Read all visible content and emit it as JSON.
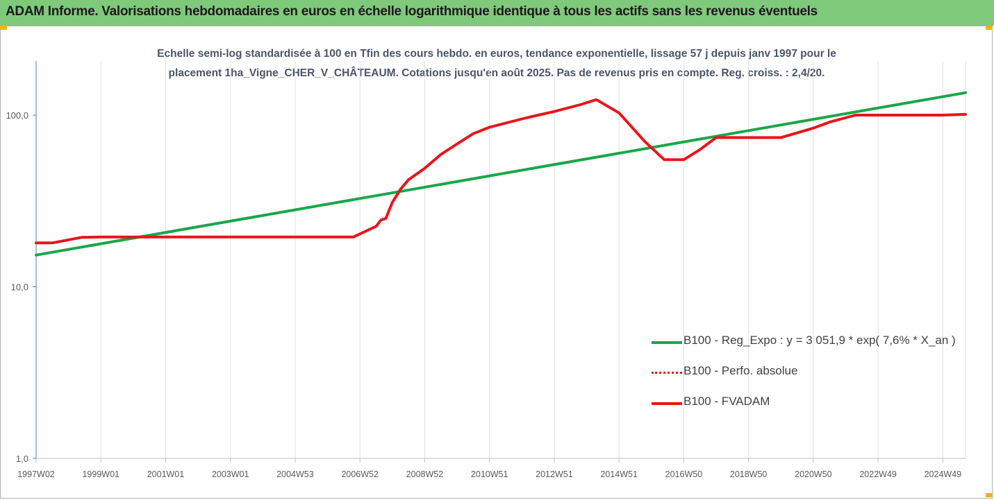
{
  "header": {
    "title": "ADAM Informe. Valorisations hebdomadaires en euros en échelle logarithmique identique à tous les actifs sans les revenus éventuels"
  },
  "subtitle": {
    "line1": "Echelle semi-log standardisée à 100 en Tfin des cours hebdo. en euros, tendance exponentielle, lissage 57 j depuis janv 1997 pour le",
    "line2": "placement 1ha_Vigne_CHER_V_CHÂTEAUM. Cotations jusqu'en août 2025. Pas de revenus pris en compte. Reg. croiss. : 2,4/20."
  },
  "colors": {
    "header_bg": "#7fc97a",
    "regression": "#1aa64a",
    "fvadam": "#e8151b",
    "perfo": "#e8151b",
    "grid": "#e0e0e0",
    "corner": "#f2b400"
  },
  "chart_data": {
    "type": "line",
    "title": "Echelle semi-log standardisée à 100 en Tfin des cours hebdo. en euros, tendance exponentielle, lissage 57 j depuis janv 1997 pour le placement 1ha_Vigne_CHER_V_CHÂTEAUM. Cotations jusqu'en août 2025. Pas de revenus pris en compte. Reg. croiss. : 2,4/20.",
    "y_scale": "log",
    "ylim": [
      1,
      200
    ],
    "y_ticks": [
      "1,0",
      "10,0",
      "100,0"
    ],
    "y_tick_values": [
      1,
      10,
      100
    ],
    "xlim": [
      1997.0,
      2025.7
    ],
    "x_ticks": [
      "1997W02",
      "1999W01",
      "2001W01",
      "2003W01",
      "2004W53",
      "2006W52",
      "2008W52",
      "2010W51",
      "2012W51",
      "2014W51",
      "2016W50",
      "2018W50",
      "2020W50",
      "2022W49",
      "2024W49"
    ],
    "x_tick_values": [
      1997.0,
      1999.0,
      2001.0,
      2003.0,
      2005.0,
      2007.0,
      2009.0,
      2011.0,
      2013.0,
      2015.0,
      2017.0,
      2019.0,
      2021.0,
      2023.0,
      2025.0
    ],
    "grid": "vertical",
    "legend_position": "right",
    "series": [
      {
        "name": "B100 - Reg_Expo : y = 3 051,9 * exp( 7,6% *  X_an )",
        "style": "solid",
        "color": "#1aa64a",
        "x": [
          1997.0,
          2025.7
        ],
        "y": [
          15.3,
          135
        ]
      },
      {
        "name": "B100 - Perfo. absolue",
        "style": "dotted",
        "color": "#e8151b",
        "x": [],
        "y": []
      },
      {
        "name": "B100 - FVADAM",
        "style": "solid",
        "color": "#e8151b",
        "x": [
          1997.0,
          1997.5,
          1998.4,
          1999.0,
          2002.0,
          2005.0,
          2006.3,
          2006.8,
          2007.5,
          2007.65,
          2007.8,
          2008.0,
          2008.25,
          2008.5,
          2009.0,
          2009.5,
          2010.0,
          2010.5,
          2011.0,
          2012.0,
          2012.5,
          2013.0,
          2013.8,
          2014.3,
          2015.0,
          2015.8,
          2016.4,
          2017.0,
          2017.5,
          2018.0,
          2019.0,
          2020.0,
          2021.0,
          2021.5,
          2022.3,
          2023.0,
          2025.0,
          2025.7
        ],
        "y": [
          18,
          18,
          19.4,
          19.5,
          19.5,
          19.5,
          19.5,
          19.5,
          22.5,
          24.5,
          25,
          31,
          37,
          42,
          49,
          59,
          68,
          78,
          85,
          95,
          100,
          105,
          115,
          123,
          103,
          70,
          55,
          55,
          63,
          74,
          74,
          74,
          84,
          91,
          100,
          100,
          100,
          101
        ]
      }
    ]
  }
}
